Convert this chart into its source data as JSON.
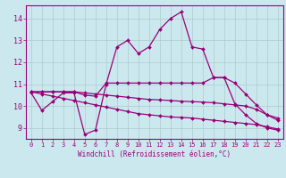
{
  "xlabel": "Windchill (Refroidissement éolien,°C)",
  "background_color": "#cce8ef",
  "line_color": "#990077",
  "grid_color": "#aacccc",
  "xlim": [
    -0.5,
    23.5
  ],
  "ylim": [
    8.5,
    14.6
  ],
  "xticks": [
    0,
    1,
    2,
    3,
    4,
    5,
    6,
    7,
    8,
    9,
    10,
    11,
    12,
    13,
    14,
    15,
    16,
    17,
    18,
    19,
    20,
    21,
    22,
    23
  ],
  "yticks": [
    9,
    10,
    11,
    12,
    13,
    14
  ],
  "series": [
    {
      "x": [
        0,
        1,
        2,
        3,
        4,
        5,
        6,
        7,
        8,
        9,
        10,
        11,
        12,
        13,
        14,
        15,
        16,
        17,
        18,
        19,
        20,
        21,
        22,
        23
      ],
      "y": [
        10.6,
        9.8,
        10.2,
        10.6,
        10.6,
        8.7,
        8.9,
        11.0,
        12.7,
        13.0,
        12.4,
        12.7,
        13.5,
        14.0,
        14.3,
        12.7,
        12.6,
        11.3,
        11.3,
        10.1,
        9.6,
        9.2,
        9.0,
        8.9
      ]
    },
    {
      "x": [
        0,
        1,
        2,
        3,
        4,
        5,
        6,
        7,
        8,
        9,
        10,
        11,
        12,
        13,
        14,
        15,
        16,
        17,
        18,
        19,
        20,
        21,
        22,
        23
      ],
      "y": [
        10.65,
        10.65,
        10.65,
        10.65,
        10.65,
        10.6,
        10.55,
        10.5,
        10.45,
        10.4,
        10.35,
        10.3,
        10.28,
        10.25,
        10.22,
        10.2,
        10.18,
        10.15,
        10.1,
        10.05,
        10.0,
        9.85,
        9.6,
        9.45
      ]
    },
    {
      "x": [
        0,
        1,
        2,
        3,
        4,
        5,
        6,
        7,
        8,
        9,
        10,
        11,
        12,
        13,
        14,
        15,
        16,
        17,
        18,
        19,
        20,
        21,
        22,
        23
      ],
      "y": [
        10.65,
        10.55,
        10.45,
        10.35,
        10.25,
        10.15,
        10.05,
        9.95,
        9.85,
        9.75,
        9.65,
        9.6,
        9.55,
        9.5,
        9.48,
        9.45,
        9.4,
        9.35,
        9.3,
        9.25,
        9.2,
        9.15,
        9.05,
        8.95
      ]
    },
    {
      "x": [
        0,
        1,
        2,
        3,
        4,
        5,
        6,
        7,
        8,
        9,
        10,
        11,
        12,
        13,
        14,
        15,
        16,
        17,
        18,
        19,
        20,
        21,
        22,
        23
      ],
      "y": [
        10.65,
        10.65,
        10.65,
        10.65,
        10.65,
        10.5,
        10.45,
        11.05,
        11.05,
        11.05,
        11.05,
        11.05,
        11.05,
        11.05,
        11.05,
        11.05,
        11.05,
        11.3,
        11.3,
        11.05,
        10.55,
        10.05,
        9.6,
        9.35
      ]
    }
  ]
}
